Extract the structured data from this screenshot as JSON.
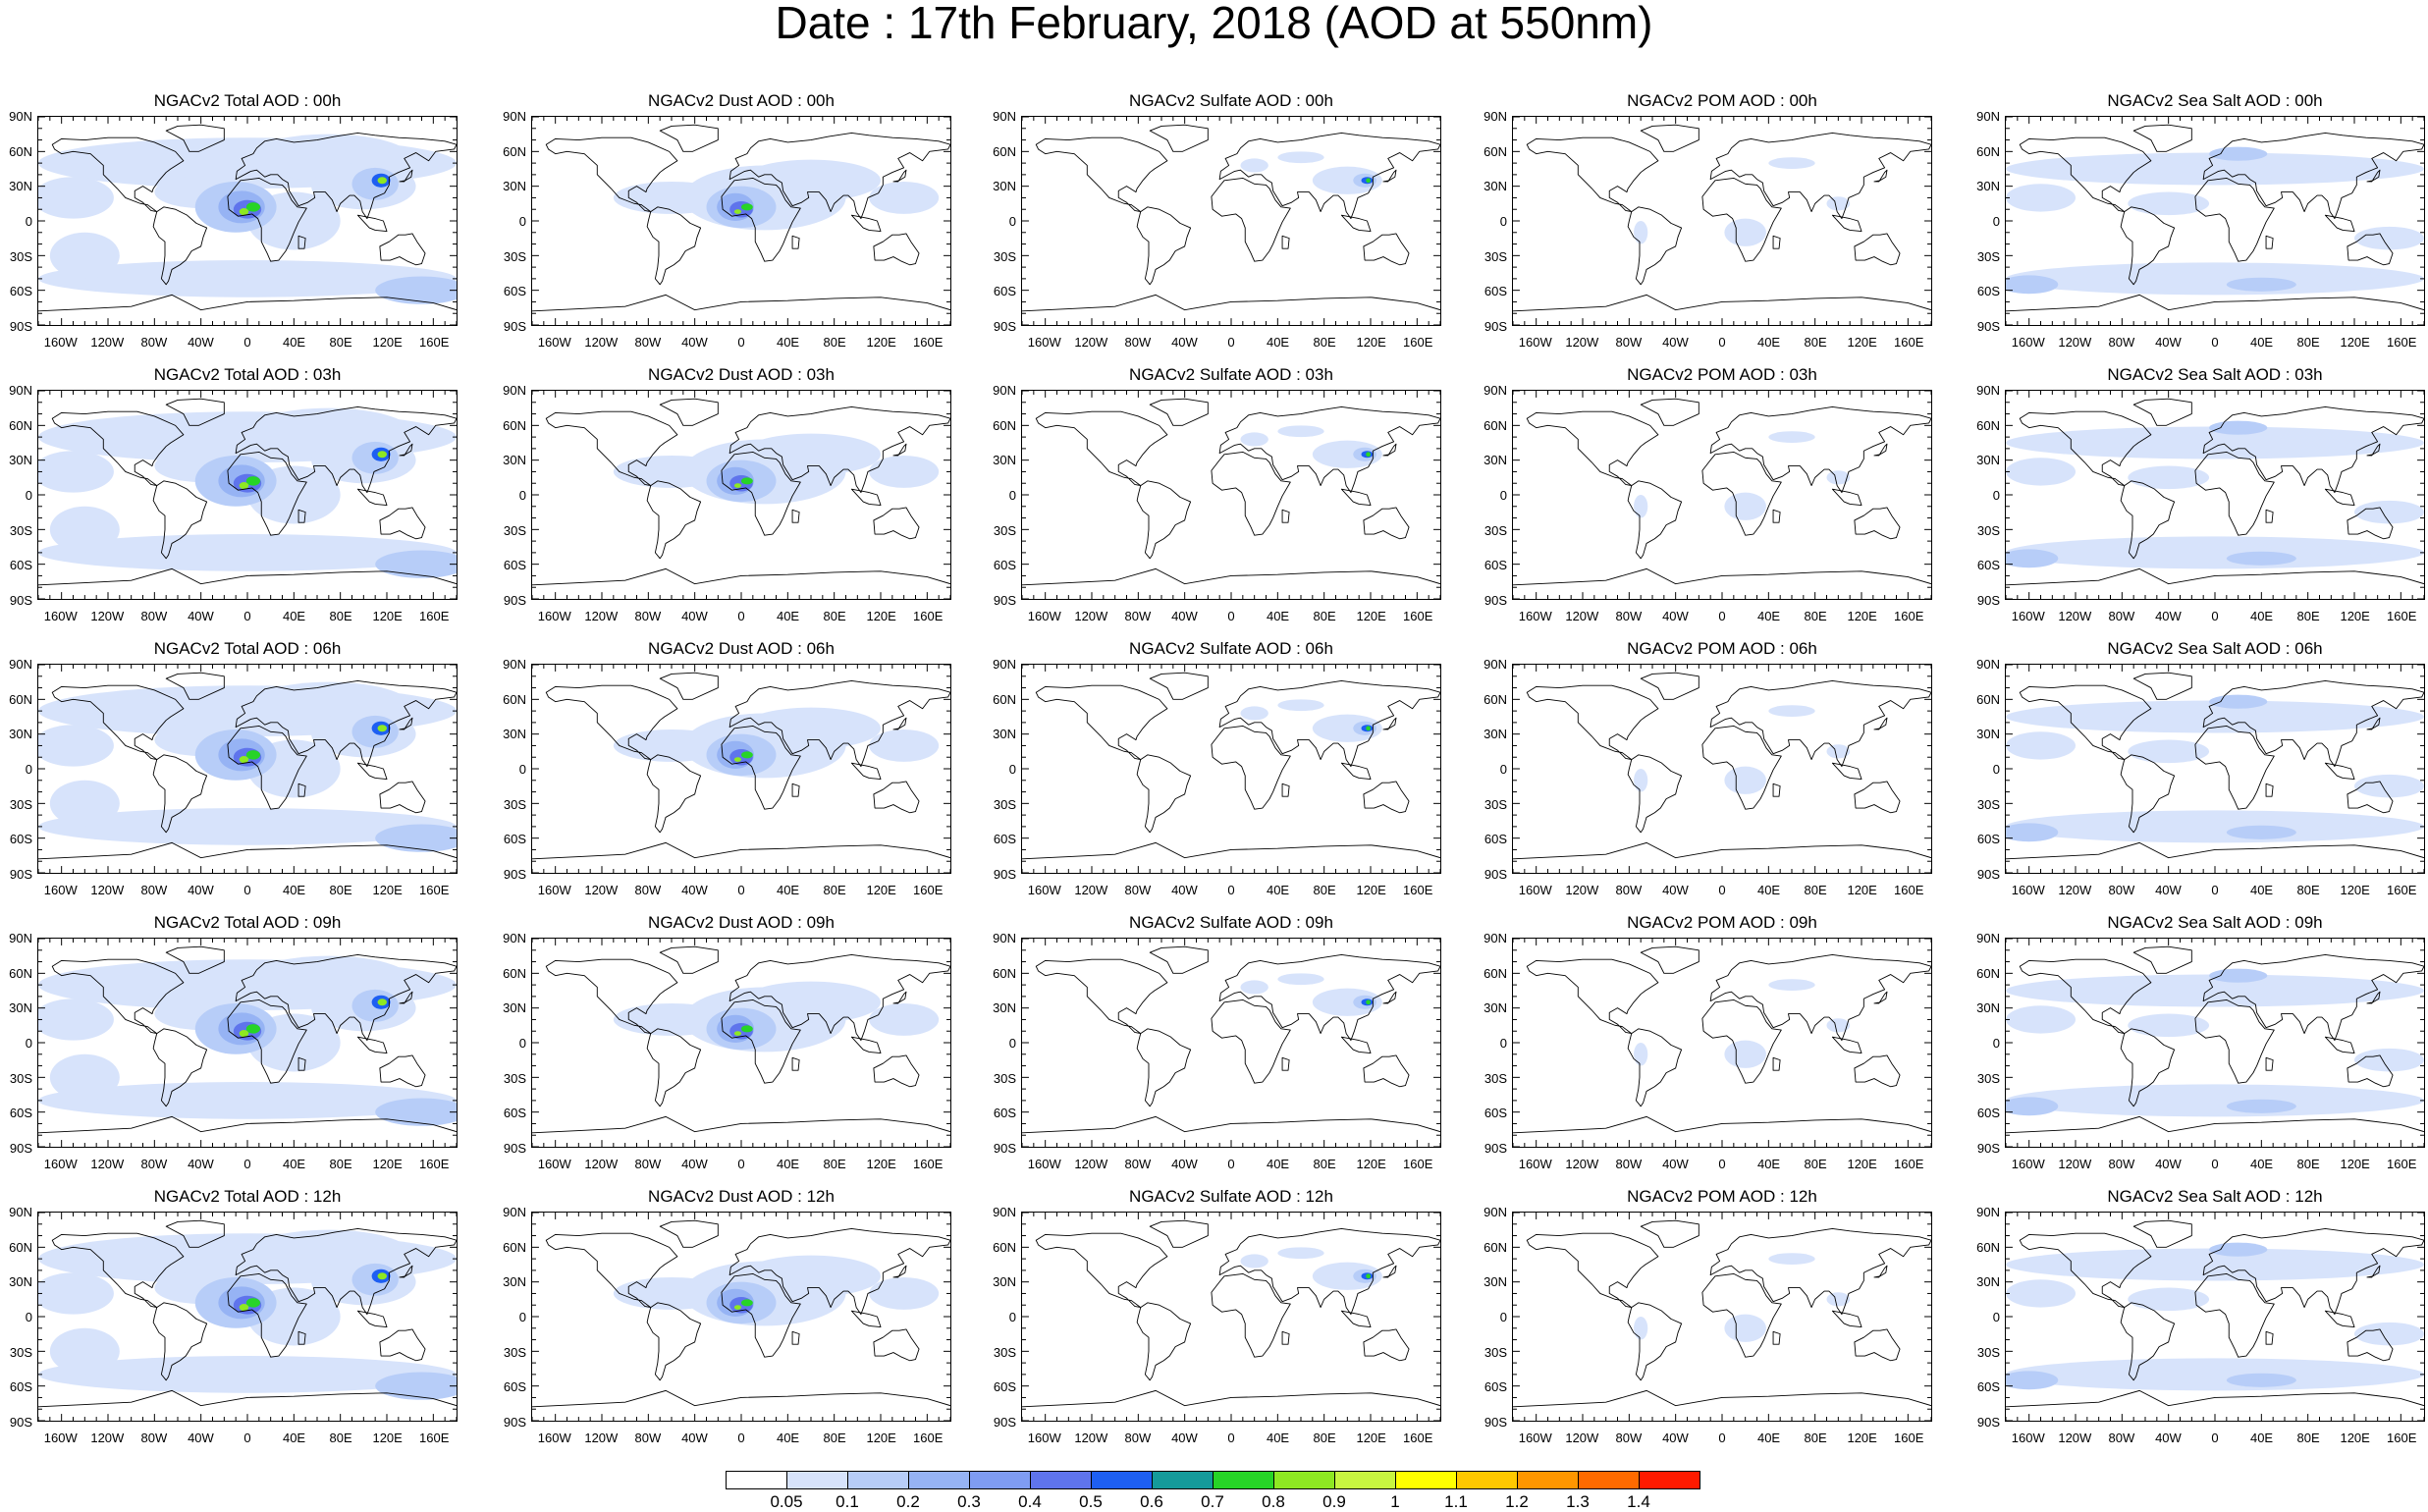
{
  "title": "Date : 17th February, 2018 (AOD at 550nm)",
  "lat_labels": [
    "90N",
    "60N",
    "30N",
    "0",
    "30S",
    "60S",
    "90S"
  ],
  "lon_labels": [
    "160W",
    "120W",
    "80W",
    "40W",
    "0",
    "40E",
    "80E",
    "120E",
    "160E"
  ],
  "rows": [
    {
      "panels": [
        "NGACv2 Total AOD : 00h",
        "NGACv2 Dust AOD : 00h",
        "NGACv2 Sulfate AOD : 00h",
        "NGACv2 POM AOD : 00h",
        "NGACv2 Sea Salt AOD : 00h"
      ]
    },
    {
      "panels": [
        "NGACv2 Total AOD : 03h",
        "NGACv2 Dust AOD : 03h",
        "NGACv2 Sulfate AOD : 03h",
        "NGACv2 POM AOD : 03h",
        "NGACv2 Sea Salt AOD : 03h"
      ]
    },
    {
      "panels": [
        "NGACv2 Total AOD : 06h",
        "NGACv2 Dust AOD : 06h",
        "NGACv2 Sulfate AOD : 06h",
        "NGACv2 POM AOD : 06h",
        "NGACv2 Sea Salt AOD : 06h"
      ]
    },
    {
      "panels": [
        "NGACv2 Total AOD : 09h",
        "NGACv2 Dust AOD : 09h",
        "NGACv2 Sulfate AOD : 09h",
        "NGACv2 POM AOD : 09h",
        "NGACv2 Sea Salt  AOD : 09h"
      ]
    },
    {
      "panels": [
        "NGACv2 Total AOD :  12h",
        "NGACv2 Dust AOD : 12h",
        "NGACv2 Sulfate AOD : 12h",
        "NGACv2 POM  AOD : 12h",
        "NGACv2 Sea Salt  AOD : 12h"
      ]
    }
  ],
  "colorbar": {
    "levels": [
      "0.05",
      "0.1",
      "0.2",
      "0.3",
      "0.4",
      "0.5",
      "0.6",
      "0.7",
      "0.8",
      "0.9",
      "1",
      "1.1",
      "1.2",
      "1.3",
      "1.4"
    ],
    "colors": [
      "#ffffff",
      "#d7e3fb",
      "#b7cdf8",
      "#96b3f4",
      "#7f9cf2",
      "#5f74ec",
      "#1e5ff2",
      "#159a9a",
      "#27d427",
      "#8ee822",
      "#c8f540",
      "#ffff00",
      "#ffc800",
      "#ff9600",
      "#ff6a00",
      "#ff1a00"
    ]
  }
}
